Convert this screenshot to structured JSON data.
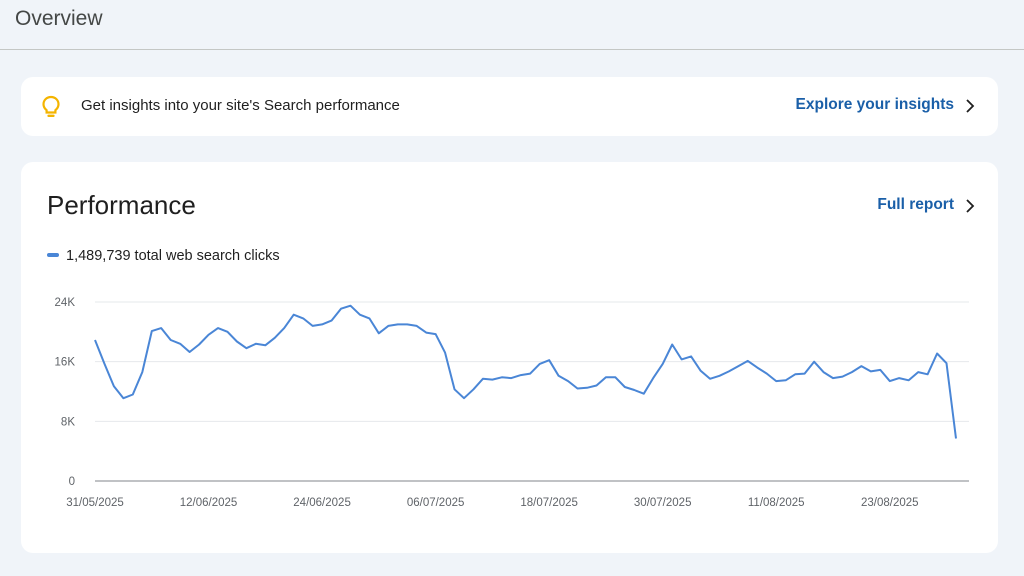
{
  "header": {
    "title": "Overview"
  },
  "insights": {
    "text": "Get insights into your site's Search performance",
    "link_label": "Explore your insights",
    "icon": "lightbulb-icon"
  },
  "performance": {
    "title": "Performance",
    "link_label": "Full report",
    "legend": "1,489,739 total web search clicks"
  },
  "colors": {
    "series": "#4a86d6",
    "link": "#1a5fa8",
    "bulb": "#f4b400",
    "background": "#f0f4f9"
  },
  "chart_data": {
    "type": "line",
    "x_tick_labels": [
      "31/05/2025",
      "12/06/2025",
      "24/06/2025",
      "06/07/2025",
      "18/07/2025",
      "30/07/2025",
      "11/08/2025",
      "23/08/2025"
    ],
    "y_tick_labels": [
      "0",
      "8K",
      "16K",
      "24K"
    ],
    "ylim": [
      0,
      24000
    ],
    "grid": true,
    "series": [
      {
        "values": [
          18900,
          15700,
          12700,
          11100,
          11600,
          14600,
          20100,
          20500,
          18900,
          18400,
          17300,
          18300,
          19600,
          20500,
          20000,
          18700,
          17800,
          18400,
          18200,
          19200,
          20500,
          22300,
          21800,
          20800,
          21000,
          21500,
          23100,
          23500,
          22300,
          21800,
          19800,
          20800,
          21000,
          21000,
          20800,
          19900,
          19700,
          17200,
          12300,
          11100,
          12300,
          13700,
          13600,
          13900,
          13800,
          14200,
          14400,
          15700,
          16200,
          14100,
          13400,
          12400,
          12500,
          12800,
          13900,
          13900,
          12600,
          12200,
          11700,
          13800,
          15700,
          18300,
          16300,
          16700,
          14800,
          13700,
          14100,
          14700,
          15400,
          16100,
          15200,
          14400,
          13400,
          13500,
          14300,
          14400,
          16000,
          14600,
          13800,
          14000,
          14600,
          15400,
          14700,
          14900,
          13400,
          13800,
          13500,
          14600,
          14300,
          17100,
          15800,
          5700
        ]
      }
    ]
  }
}
